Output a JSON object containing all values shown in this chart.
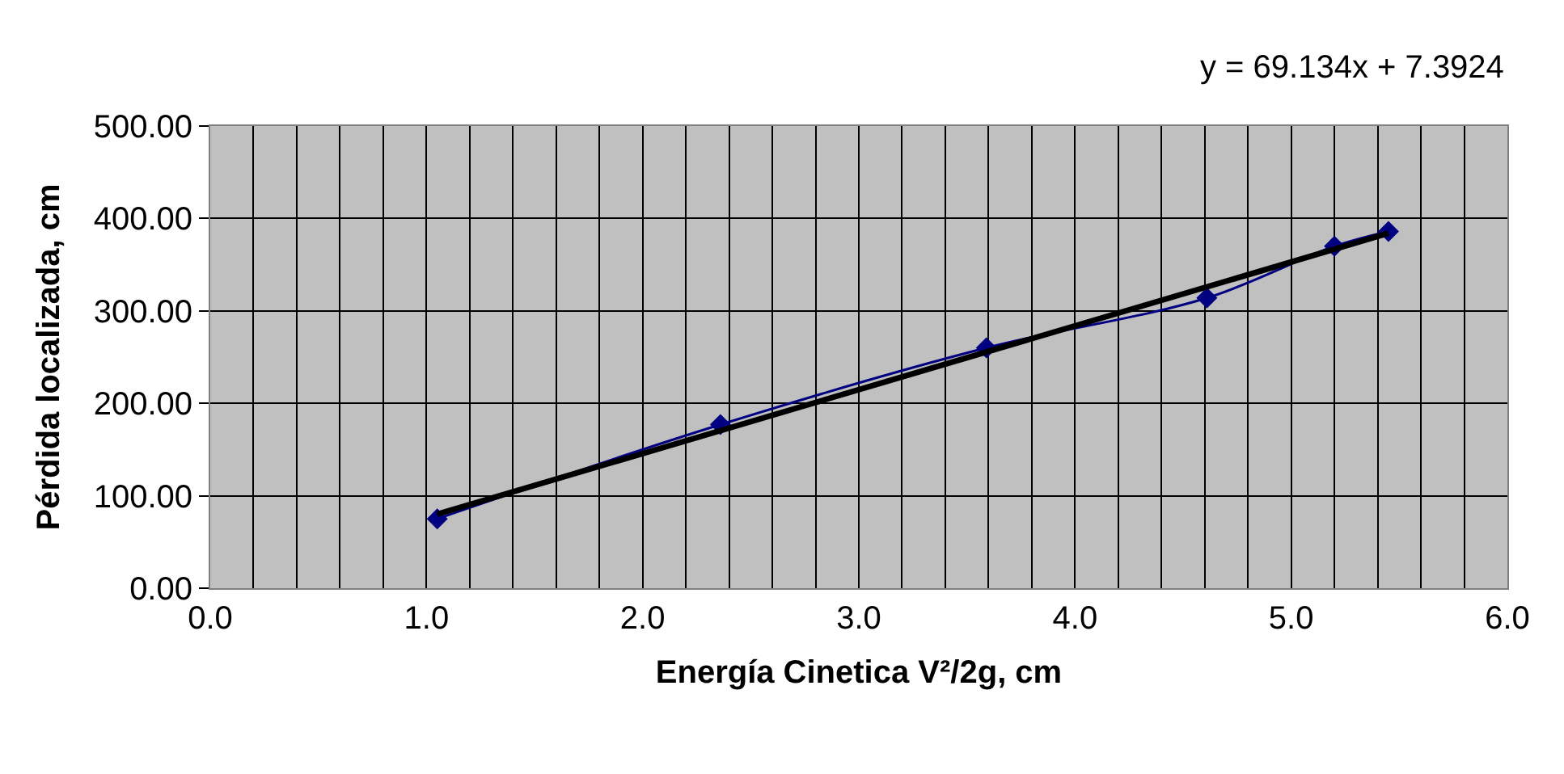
{
  "chart_data": {
    "type": "line",
    "xlabel": "Energía Cinetica V²/2g, cm",
    "ylabel": "Pérdida localizada, cm",
    "annotations": [
      "y = 69.134x + 7.3924"
    ],
    "series": [
      {
        "color": "#000080",
        "marker": "diamond",
        "x": [
          1.05,
          2.36,
          3.59,
          4.61,
          5.2,
          5.45
        ],
        "values": [
          75,
          177,
          260,
          314,
          370,
          386
        ]
      },
      {
        "color": "#000000",
        "marker": "none",
        "x": [
          1.05,
          5.45
        ],
        "values": [
          80,
          384
        ]
      }
    ],
    "xlim": [
      0,
      6
    ],
    "xticks": [
      {
        "value": 0,
        "label": "0.0"
      },
      {
        "value": 1,
        "label": "1.0"
      },
      {
        "value": 2,
        "label": "2.0"
      },
      {
        "value": 3,
        "label": "3.0"
      },
      {
        "value": 4,
        "label": "4.0"
      },
      {
        "value": 5,
        "label": "5.0"
      },
      {
        "value": 6,
        "label": "6.0"
      }
    ],
    "ylim": [
      0,
      500
    ],
    "yticks": [
      {
        "value": 0,
        "label": "0.00"
      },
      {
        "value": 100,
        "label": "100.00"
      },
      {
        "value": 200,
        "label": "200.00"
      },
      {
        "value": 300,
        "label": "300.00"
      },
      {
        "value": 400,
        "label": "400.00"
      },
      {
        "value": 500,
        "label": "500.00"
      }
    ],
    "grid": true,
    "legend": false
  }
}
